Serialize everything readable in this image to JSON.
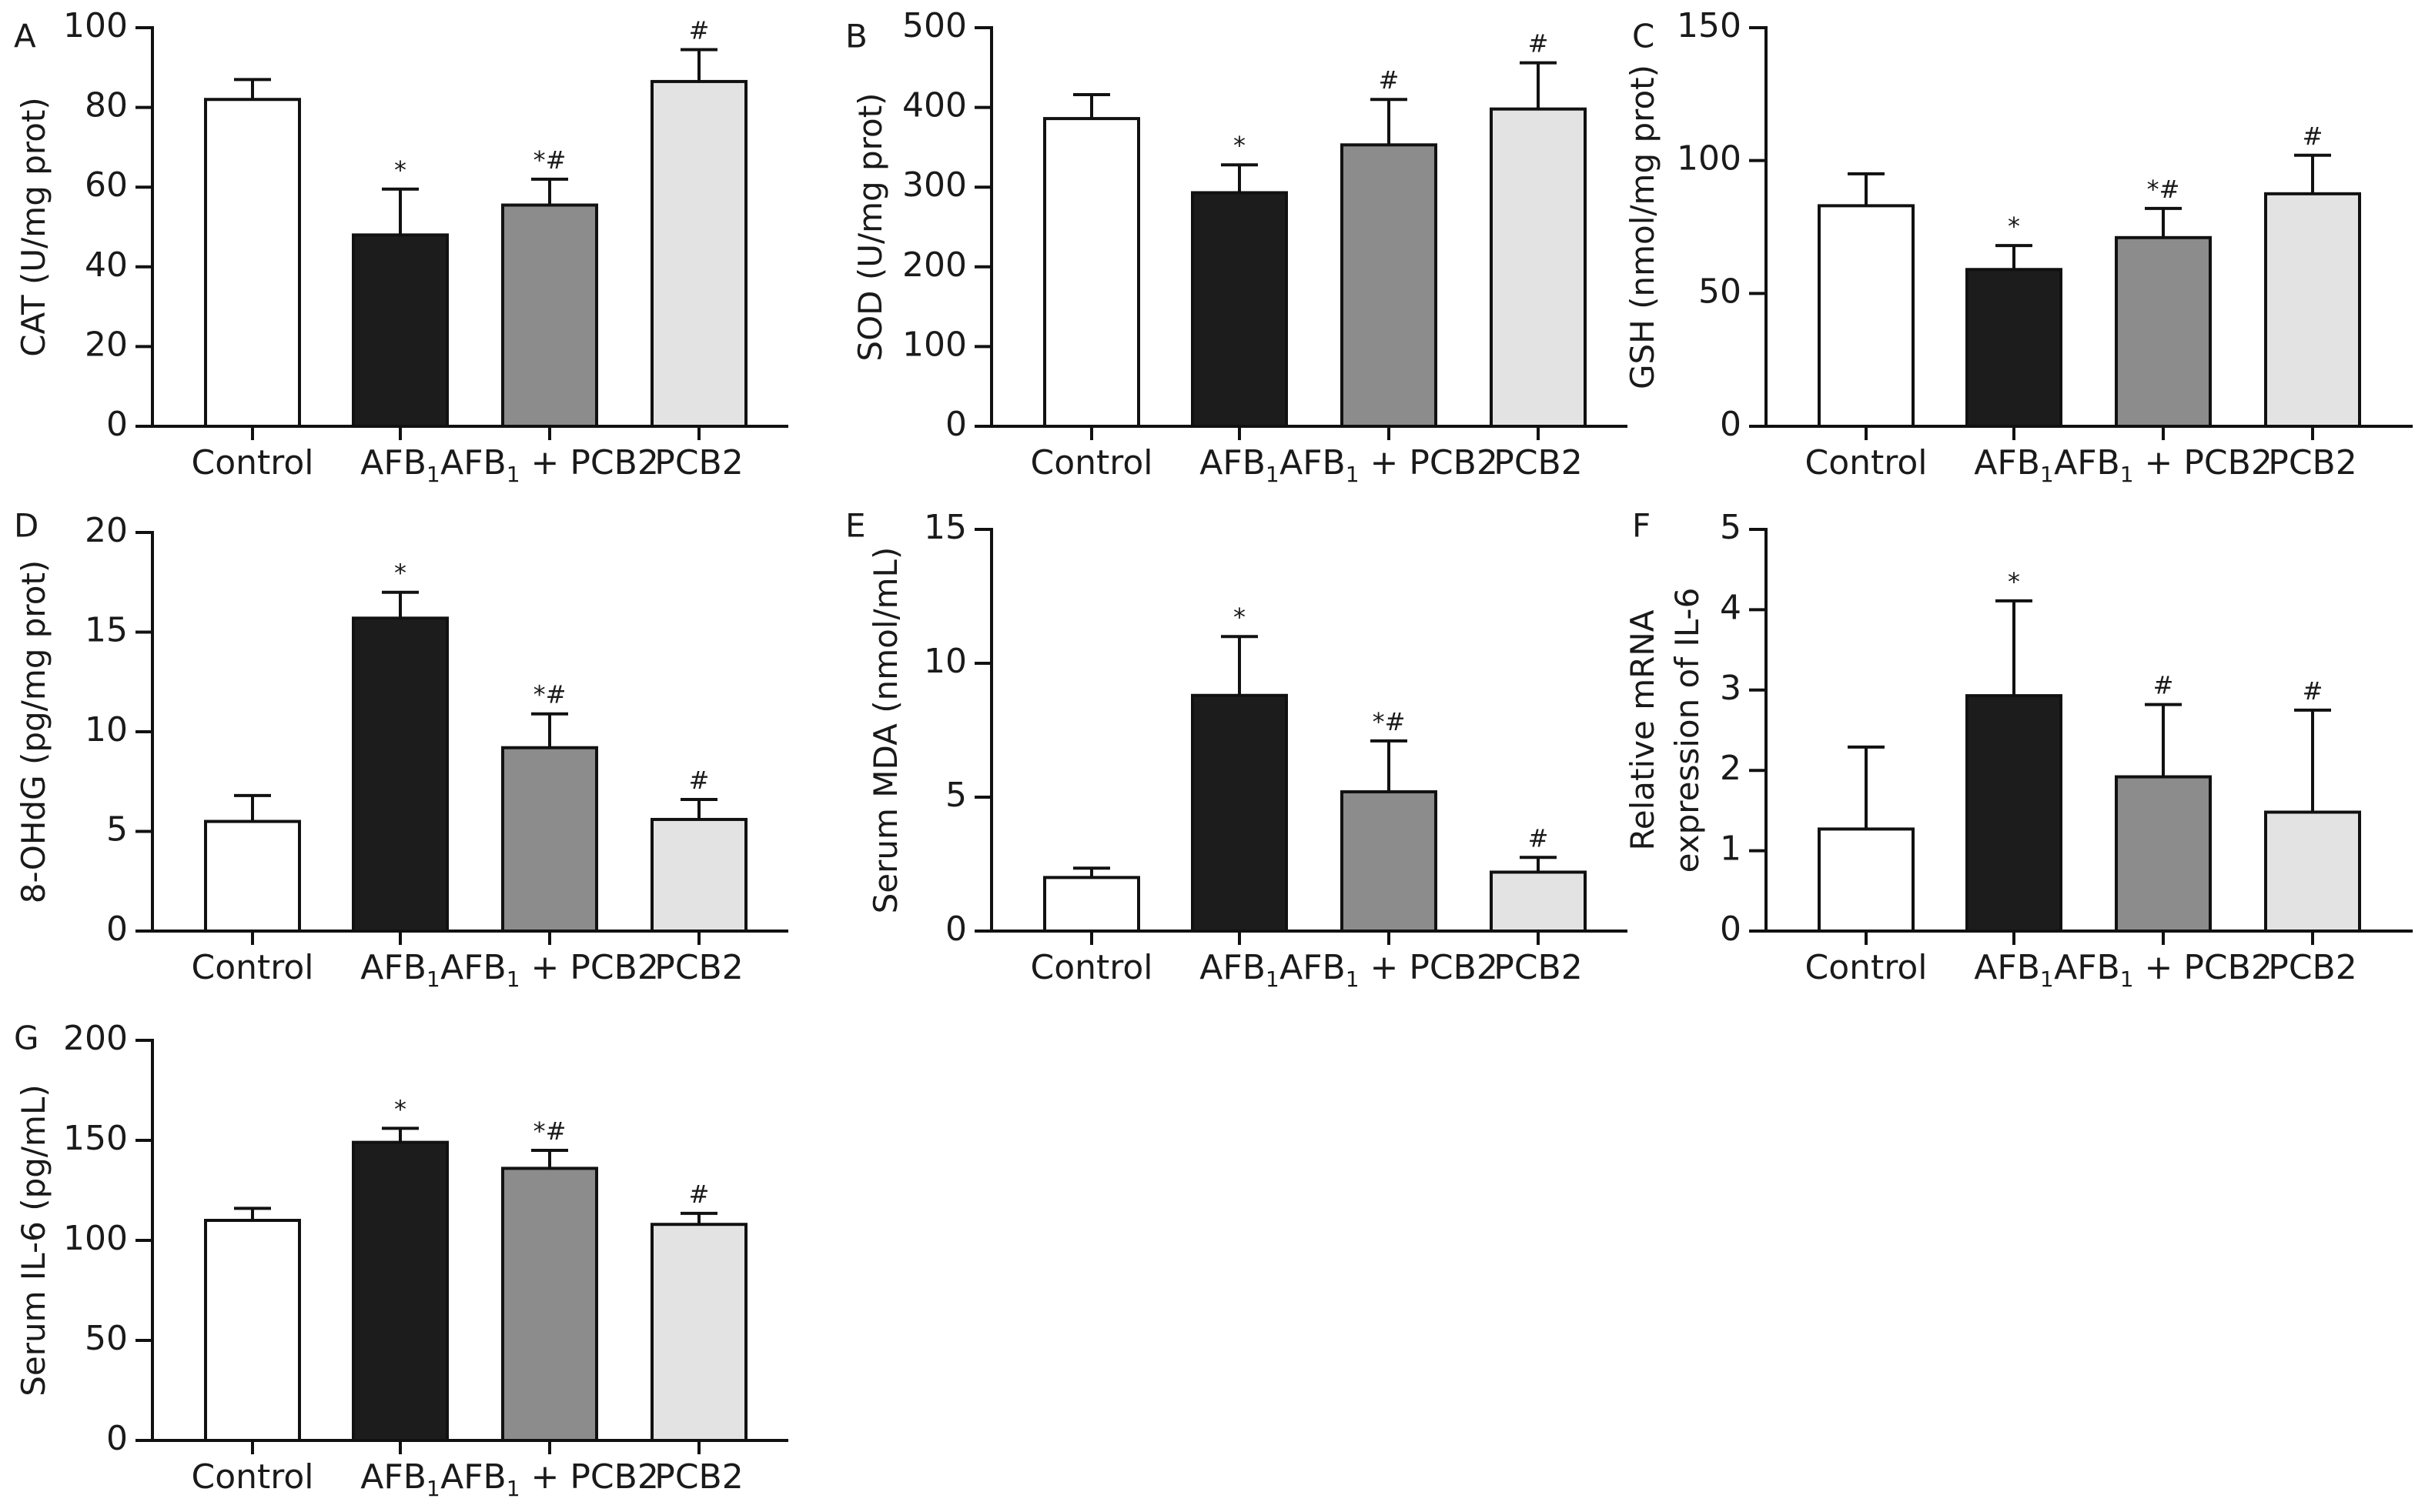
{
  "chart_data": [
    {
      "panel": "A",
      "type": "bar",
      "categories": [
        "Control",
        "AFB1",
        "AFB1 + PCB2",
        "PCB2"
      ],
      "values": [
        82,
        48,
        55.5,
        86.5
      ],
      "errors": [
        5,
        11.5,
        6.5,
        8
      ],
      "significance": [
        "",
        "*",
        "*#",
        "#"
      ],
      "ylabel": "CAT (U/mg prot)",
      "ylim": [
        0,
        100
      ],
      "yticks": [
        0,
        20,
        40,
        60,
        80,
        100
      ]
    },
    {
      "panel": "B",
      "type": "bar",
      "categories": [
        "Control",
        "AFB1",
        "AFB1 + PCB2",
        "PCB2"
      ],
      "values": [
        386,
        293,
        353,
        398
      ],
      "errors": [
        30,
        35,
        57,
        58
      ],
      "significance": [
        "",
        "*",
        "#",
        "#"
      ],
      "ylabel": "SOD (U/mg prot)",
      "ylim": [
        0,
        500
      ],
      "yticks": [
        0,
        100,
        200,
        300,
        400,
        500
      ]
    },
    {
      "panel": "C",
      "type": "bar",
      "categories": [
        "Control",
        "AFB1",
        "AFB1 + PCB2",
        "PCB2"
      ],
      "values": [
        83,
        59,
        71,
        87.5
      ],
      "errors": [
        12,
        9,
        11,
        14.5
      ],
      "significance": [
        "",
        "*",
        "*#",
        "#"
      ],
      "ylabel": "GSH (nmol/mg prot)",
      "ylim": [
        0,
        150
      ],
      "yticks": [
        0,
        50,
        100,
        150
      ]
    },
    {
      "panel": "D",
      "type": "bar",
      "categories": [
        "Control",
        "AFB1",
        "AFB1 + PCB2",
        "PCB2"
      ],
      "values": [
        5.5,
        15.7,
        9.2,
        5.6
      ],
      "errors": [
        1.3,
        1.3,
        1.7,
        1.0
      ],
      "significance": [
        "",
        "*",
        "*#",
        "#"
      ],
      "ylabel": "8-OHdG (pg/mg prot)",
      "ylim": [
        0,
        20
      ],
      "yticks": [
        0,
        5,
        10,
        15,
        20
      ]
    },
    {
      "panel": "E",
      "type": "bar",
      "categories": [
        "Control",
        "AFB1",
        "AFB1 + PCB2",
        "PCB2"
      ],
      "values": [
        2.0,
        8.8,
        5.2,
        2.2
      ],
      "errors": [
        0.35,
        2.2,
        1.9,
        0.55
      ],
      "significance": [
        "",
        "*",
        "*#",
        "#"
      ],
      "ylabel": "Serum MDA (nmol/mL)",
      "ylim": [
        0,
        15
      ],
      "yticks": [
        0,
        5,
        10,
        15
      ]
    },
    {
      "panel": "F",
      "type": "bar",
      "categories": [
        "Control",
        "AFB1",
        "AFB1 + PCB2",
        "PCB2"
      ],
      "values": [
        1.27,
        2.93,
        1.92,
        1.48
      ],
      "errors": [
        1.02,
        1.18,
        0.9,
        1.27
      ],
      "significance": [
        "",
        "*",
        "#",
        "#"
      ],
      "ylabel": "Relative mRNA",
      "ylabel2": "expression of IL-6",
      "ylim": [
        0,
        5
      ],
      "yticks": [
        0,
        1,
        2,
        3,
        4,
        5
      ]
    },
    {
      "panel": "G",
      "type": "bar",
      "categories": [
        "Control",
        "AFB1",
        "AFB1 + PCB2",
        "PCB2"
      ],
      "values": [
        110,
        149,
        136,
        108
      ],
      "errors": [
        6,
        7,
        9,
        5.5
      ],
      "significance": [
        "",
        "*",
        "*#",
        "#"
      ],
      "ylabel": "Serum IL-6 (pg/mL)",
      "ylim": [
        0,
        200
      ],
      "yticks": [
        0,
        50,
        100,
        150,
        200
      ]
    }
  ],
  "bar_colors": [
    "#ffffff",
    "#1c1c1c",
    "#8c8c8c",
    "#e3e3e3"
  ]
}
